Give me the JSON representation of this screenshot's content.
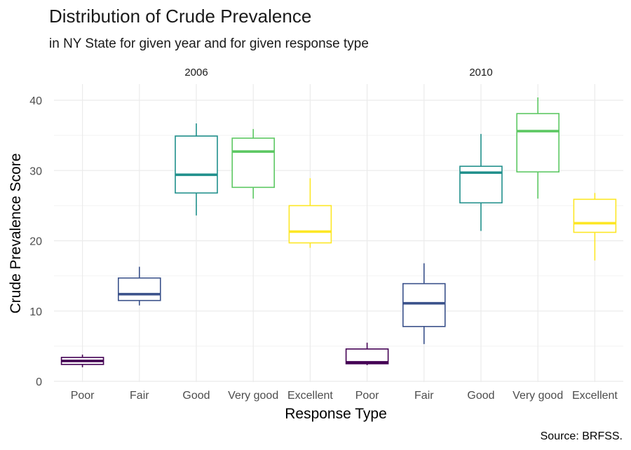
{
  "chart_data": {
    "type": "box",
    "title": "Distribution of Crude Prevalence",
    "subtitle": "in NY State for given year and for given response type",
    "xlabel": "Response Type",
    "ylabel": "Crude Prevalence Score",
    "caption": "Source: BRFSS.",
    "ylim": [
      0,
      42
    ],
    "yticks": [
      0,
      10,
      20,
      30,
      40
    ],
    "categories": [
      "Poor",
      "Fair",
      "Good",
      "Very good",
      "Excellent"
    ],
    "colors": {
      "Poor": "#440154",
      "Fair": "#3b528b",
      "Good": "#21908c",
      "Very good": "#5dc863",
      "Excellent": "#fde725"
    },
    "facets": [
      {
        "label": "2006",
        "boxes": [
          {
            "category": "Poor",
            "min": 2.0,
            "q1": 2.4,
            "median": 2.9,
            "q3": 3.4,
            "max": 3.8
          },
          {
            "category": "Fair",
            "min": 10.8,
            "q1": 11.5,
            "median": 12.4,
            "q3": 14.7,
            "max": 16.3
          },
          {
            "category": "Good",
            "min": 23.6,
            "q1": 26.8,
            "median": 29.4,
            "q3": 34.9,
            "max": 36.7
          },
          {
            "category": "Very good",
            "min": 26.0,
            "q1": 27.6,
            "median": 32.7,
            "q3": 34.6,
            "max": 35.9
          },
          {
            "category": "Excellent",
            "min": 19.0,
            "q1": 19.7,
            "median": 21.3,
            "q3": 25.0,
            "max": 28.9
          }
        ]
      },
      {
        "label": "2010",
        "boxes": [
          {
            "category": "Poor",
            "min": 2.3,
            "q1": 2.5,
            "median": 2.7,
            "q3": 4.6,
            "max": 5.5
          },
          {
            "category": "Fair",
            "min": 5.3,
            "q1": 7.8,
            "median": 11.1,
            "q3": 13.9,
            "max": 16.8
          },
          {
            "category": "Good",
            "min": 21.4,
            "q1": 25.4,
            "median": 29.7,
            "q3": 30.6,
            "max": 35.2
          },
          {
            "category": "Very good",
            "min": 26.0,
            "q1": 29.8,
            "median": 35.6,
            "q3": 38.1,
            "max": 40.4
          },
          {
            "category": "Excellent",
            "min": 17.2,
            "q1": 21.2,
            "median": 22.5,
            "q3": 25.9,
            "max": 26.8
          }
        ]
      }
    ]
  }
}
